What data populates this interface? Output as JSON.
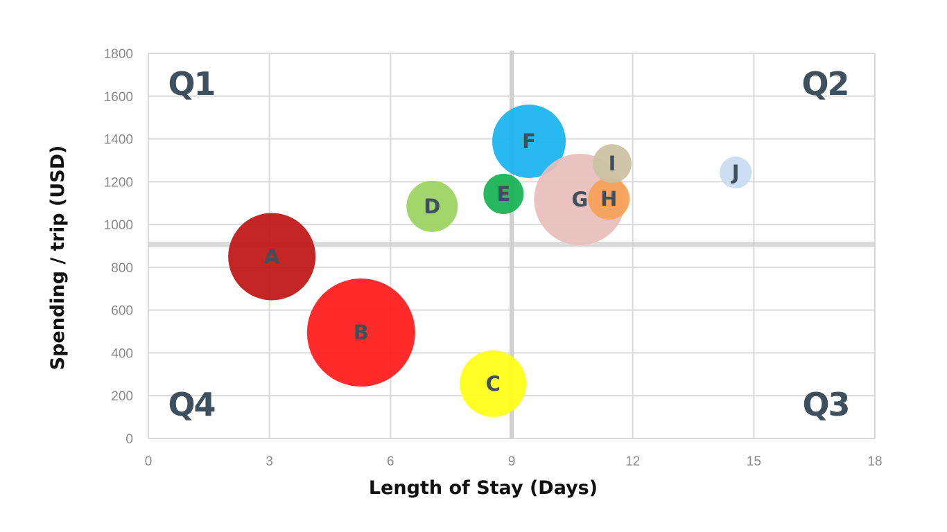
{
  "chart_data": {
    "type": "bubble",
    "title": "",
    "xlabel": "Length of Stay (Days)",
    "ylabel": "Spending / trip (USD)",
    "xlim": [
      0,
      18
    ],
    "ylim": [
      0,
      1800
    ],
    "x_ticks": [
      0,
      3,
      6,
      9,
      12,
      15,
      18
    ],
    "y_ticks": [
      0,
      200,
      400,
      600,
      800,
      1000,
      1200,
      1400,
      1600,
      1800
    ],
    "grid": true,
    "legend": "none",
    "reference_lines": {
      "x": 9,
      "y": 907
    },
    "quadrant_labels": [
      {
        "label": "Q1",
        "position": "top-left"
      },
      {
        "label": "Q2",
        "position": "top-right"
      },
      {
        "label": "Q3",
        "position": "bottom-right"
      },
      {
        "label": "Q4",
        "position": "bottom-left"
      }
    ],
    "series": [
      {
        "name": "A",
        "x": 3.06,
        "y": 850,
        "size": 63,
        "color": "#c01515"
      },
      {
        "name": "B",
        "x": 5.27,
        "y": 495,
        "size": 78,
        "color": "#ff1a1a"
      },
      {
        "name": "C",
        "x": 8.54,
        "y": 256,
        "size": 48,
        "color": "#ffff14"
      },
      {
        "name": "D",
        "x": 7.03,
        "y": 1085,
        "size": 37,
        "color": "#9bd35f"
      },
      {
        "name": "E",
        "x": 8.8,
        "y": 1143,
        "size": 29,
        "color": "#17b152"
      },
      {
        "name": "F",
        "x": 9.43,
        "y": 1389,
        "size": 53,
        "color": "#17b4ee"
      },
      {
        "name": "G",
        "x": 10.69,
        "y": 1117,
        "size": 66,
        "color": "#e8bdbb"
      },
      {
        "name": "H",
        "x": 11.41,
        "y": 1120,
        "size": 30,
        "color": "#f79f55"
      },
      {
        "name": "I",
        "x": 11.49,
        "y": 1285,
        "size": 28,
        "color": "#cbc2a2"
      },
      {
        "name": "J",
        "x": 14.55,
        "y": 1243,
        "size": 23,
        "color": "#c8ddf1"
      }
    ]
  },
  "colors": {
    "grid": "#d9d9d9",
    "axis_text": "#8a8a8a",
    "label_text": "#3e505e",
    "reference_line": "#d0d0d0"
  }
}
